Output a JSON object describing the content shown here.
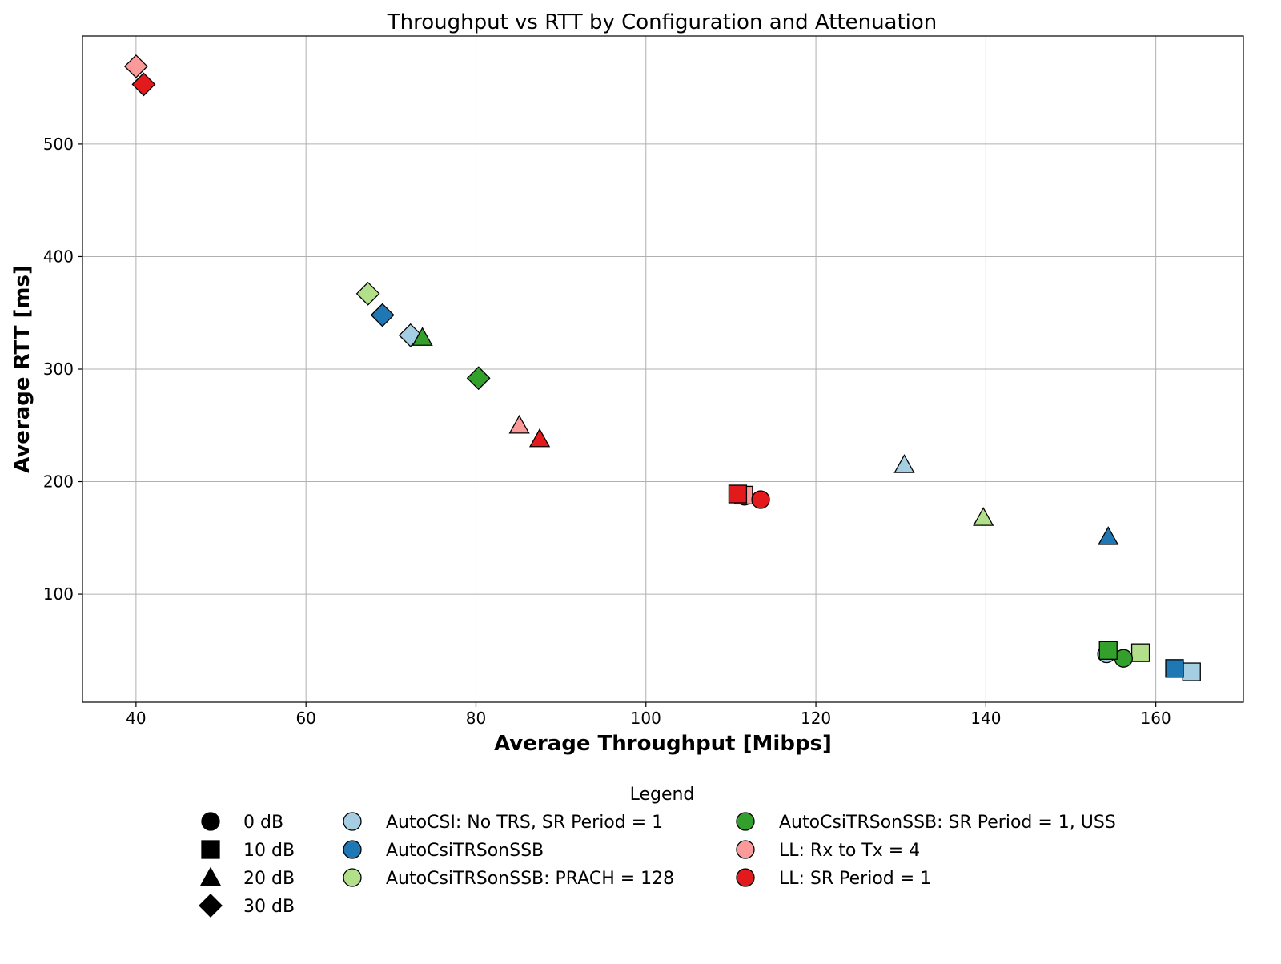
{
  "chart_data": {
    "type": "scatter",
    "title": "Throughput vs RTT by Configuration and Attenuation",
    "xlabel": "Average Throughput [Mibps]",
    "ylabel": "Average RTT [ms]",
    "xlim": [
      33.7,
      170.3
    ],
    "ylim": [
      4,
      596
    ],
    "x_ticks": [
      40,
      60,
      80,
      100,
      120,
      140,
      160
    ],
    "y_ticks": [
      100,
      200,
      300,
      400,
      500
    ],
    "x_tick_labels": [
      "40",
      "60",
      "80",
      "100",
      "120",
      "140",
      "160"
    ],
    "y_tick_labels": [
      "100",
      "200",
      "300",
      "400",
      "500"
    ],
    "grid": true,
    "legend_title": "Legend",
    "legend_placement": "below chart, centered",
    "markers": [
      {
        "label": "0 dB",
        "shape": "circle"
      },
      {
        "label": "10 dB",
        "shape": "square"
      },
      {
        "label": "20 dB",
        "shape": "triangle"
      },
      {
        "label": "30 dB",
        "shape": "diamond"
      }
    ],
    "series": [
      {
        "name": "AutoCSI: No TRS, SR Period = 1",
        "color": "#a6cee3",
        "points": [
          {
            "x": 154.2,
            "y": 47,
            "attenuation": "0 dB"
          },
          {
            "x": 164.2,
            "y": 31,
            "attenuation": "10 dB"
          },
          {
            "x": 130.4,
            "y": 215,
            "attenuation": "20 dB"
          },
          {
            "x": 72.3,
            "y": 330,
            "attenuation": "30 dB"
          }
        ]
      },
      {
        "name": "AutoCsiTRSonSSB",
        "color": "#1f78b4",
        "points": [
          {
            "x": 162.2,
            "y": 34,
            "attenuation": "10 dB"
          },
          {
            "x": 154.4,
            "y": 151,
            "attenuation": "20 dB"
          },
          {
            "x": 69.0,
            "y": 348,
            "attenuation": "30 dB"
          }
        ]
      },
      {
        "name": "AutoCsiTRSonSSB: PRACH = 128",
        "color": "#b2df8a",
        "points": [
          {
            "x": 158.2,
            "y": 48,
            "attenuation": "10 dB"
          },
          {
            "x": 139.7,
            "y": 168,
            "attenuation": "20 dB"
          },
          {
            "x": 67.3,
            "y": 367,
            "attenuation": "30 dB"
          }
        ]
      },
      {
        "name": "AutoCsiTRSonSSB: SR Period = 1, USS",
        "color": "#33a02c",
        "points": [
          {
            "x": 156.2,
            "y": 43,
            "attenuation": "0 dB"
          },
          {
            "x": 154.4,
            "y": 50,
            "attenuation": "10 dB"
          },
          {
            "x": 73.7,
            "y": 328,
            "attenuation": "20 dB"
          },
          {
            "x": 80.3,
            "y": 292,
            "attenuation": "30 dB"
          }
        ]
      },
      {
        "name": "LL: Rx to Tx = 4",
        "color": "#fb9a99",
        "points": [
          {
            "x": 111.6,
            "y": 187,
            "attenuation": "0 dB"
          },
          {
            "x": 111.5,
            "y": 188,
            "attenuation": "10 dB"
          },
          {
            "x": 85.1,
            "y": 250,
            "attenuation": "20 dB"
          },
          {
            "x": 40.0,
            "y": 569,
            "attenuation": "30 dB"
          }
        ]
      },
      {
        "name": "LL: SR Period = 1",
        "color": "#e31a1c",
        "points": [
          {
            "x": 113.5,
            "y": 184,
            "attenuation": "0 dB"
          },
          {
            "x": 110.8,
            "y": 189,
            "attenuation": "10 dB"
          },
          {
            "x": 87.5,
            "y": 238,
            "attenuation": "20 dB"
          },
          {
            "x": 40.9,
            "y": 553,
            "attenuation": "30 dB"
          }
        ]
      }
    ]
  }
}
